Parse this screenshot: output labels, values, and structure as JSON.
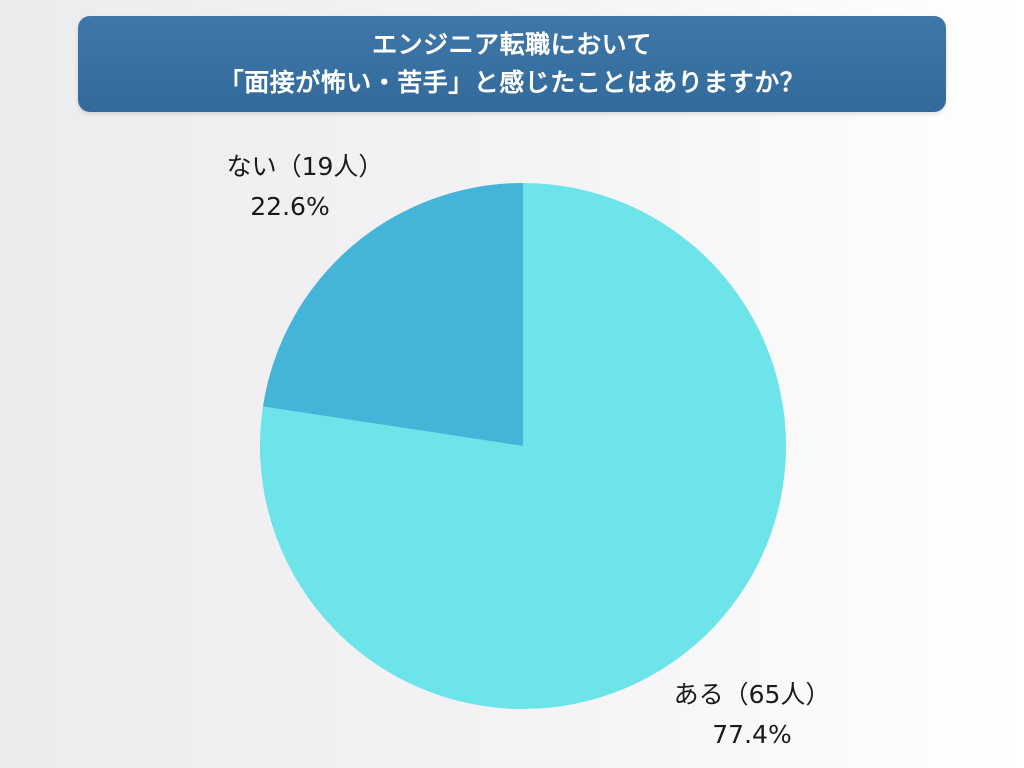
{
  "header": {
    "title_line1": "エンジニア転職において",
    "title_line2": "「面接が怖い・苦手」と感じたことはありますか？"
  },
  "chart_data": {
    "type": "pie",
    "title": "エンジニア転職において「面接が怖い・苦手」と感じたことはありますか？",
    "start_angle_deg": 0,
    "direction": "clockwise",
    "slices": [
      {
        "label": "ある（65人）",
        "count": 65,
        "percent_label": "77.4%",
        "value": 77.4,
        "color": "#6de3ea"
      },
      {
        "label": "ない（19人）",
        "count": 19,
        "percent_label": "22.6%",
        "value": 22.6,
        "color": "#44b5d8"
      }
    ]
  }
}
